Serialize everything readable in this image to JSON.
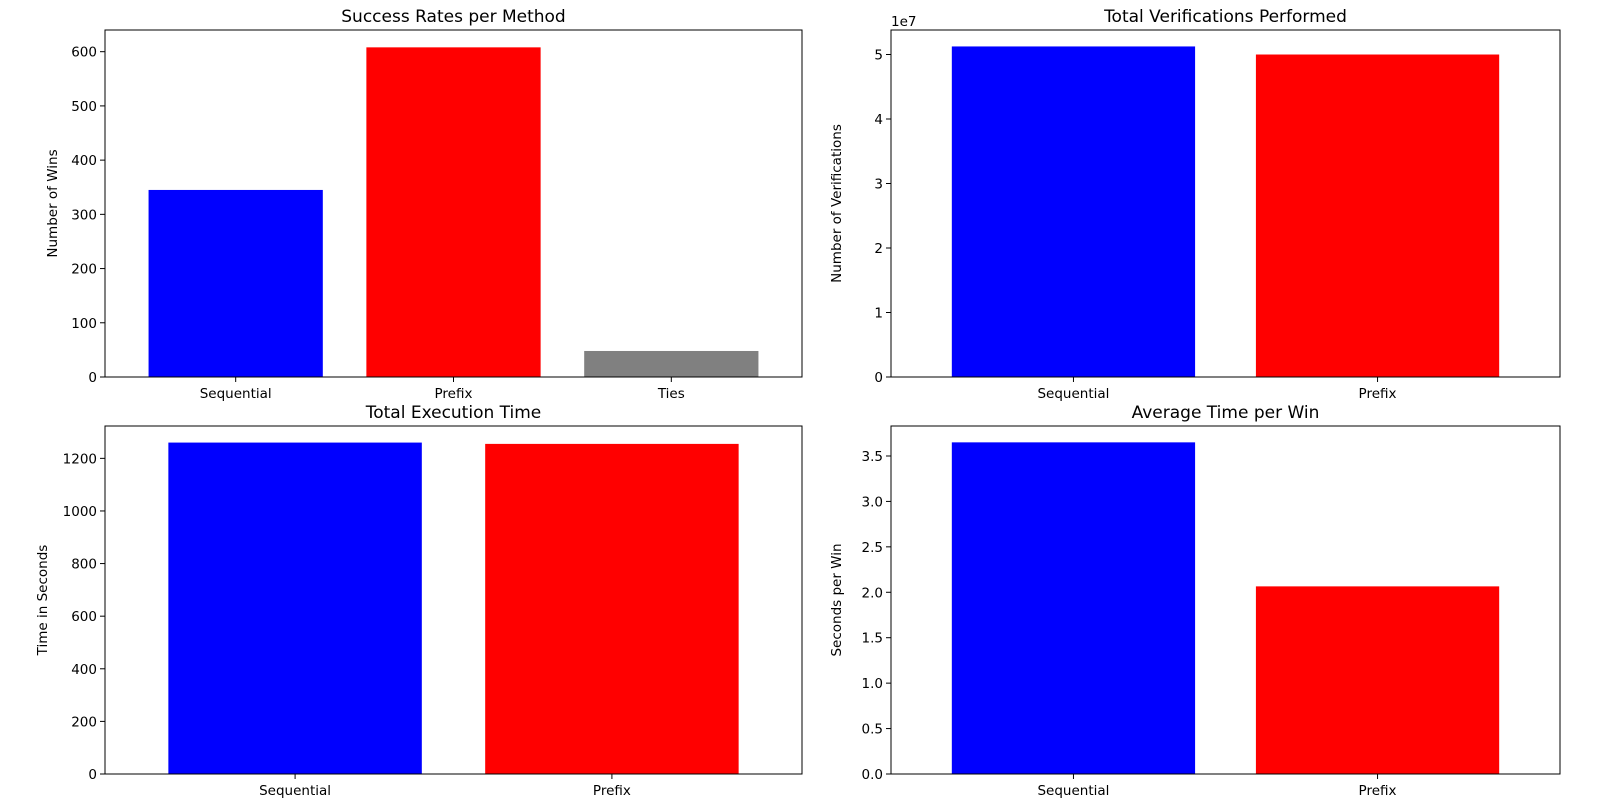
{
  "chart_data": [
    {
      "type": "bar",
      "title": "Success Rates per Method",
      "xlabel": "",
      "ylabel": "Number of Wins",
      "categories": [
        "Sequential",
        "Prefix",
        "Ties"
      ],
      "values": [
        345,
        608,
        48
      ],
      "colors": [
        "#0000ff",
        "#ff0000",
        "#808080"
      ],
      "ylim": [
        0,
        640
      ],
      "yticks": [
        0,
        100,
        200,
        300,
        400,
        500,
        600
      ],
      "ytick_labels": [
        "0",
        "100",
        "200",
        "300",
        "400",
        "500",
        "600"
      ],
      "offset_label": "",
      "grid": false
    },
    {
      "type": "bar",
      "title": "Total Verifications Performed",
      "xlabel": "",
      "ylabel": "Number of Verifications",
      "categories": [
        "Sequential",
        "Prefix"
      ],
      "values": [
        51250000,
        50000000
      ],
      "colors": [
        "#0000ff",
        "#ff0000"
      ],
      "ylim": [
        0,
        53800000
      ],
      "yticks": [
        0,
        10000000,
        20000000,
        30000000,
        40000000,
        50000000
      ],
      "ytick_labels": [
        "0",
        "1",
        "2",
        "3",
        "4",
        "5"
      ],
      "offset_label": "1e7",
      "grid": false
    },
    {
      "type": "bar",
      "title": "Total Execution Time",
      "xlabel": "",
      "ylabel": "Time in Seconds",
      "categories": [
        "Sequential",
        "Prefix"
      ],
      "values": [
        1260,
        1255
      ],
      "colors": [
        "#0000ff",
        "#ff0000"
      ],
      "ylim": [
        0,
        1323
      ],
      "yticks": [
        0,
        200,
        400,
        600,
        800,
        1000,
        1200
      ],
      "ytick_labels": [
        "0",
        "200",
        "400",
        "600",
        "800",
        "1000",
        "1200"
      ],
      "offset_label": "",
      "grid": false
    },
    {
      "type": "bar",
      "title": "Average Time per Win",
      "xlabel": "",
      "ylabel": "Seconds per Win",
      "categories": [
        "Sequential",
        "Prefix"
      ],
      "values": [
        3.65,
        2.065
      ],
      "colors": [
        "#0000ff",
        "#ff0000"
      ],
      "ylim": [
        0,
        3.83
      ],
      "yticks": [
        0,
        0.5,
        1.0,
        1.5,
        2.0,
        2.5,
        3.0,
        3.5
      ],
      "ytick_labels": [
        "0.0",
        "0.5",
        "1.0",
        "1.5",
        "2.0",
        "2.5",
        "3.0",
        "3.5"
      ],
      "offset_label": "",
      "grid": false
    }
  ]
}
